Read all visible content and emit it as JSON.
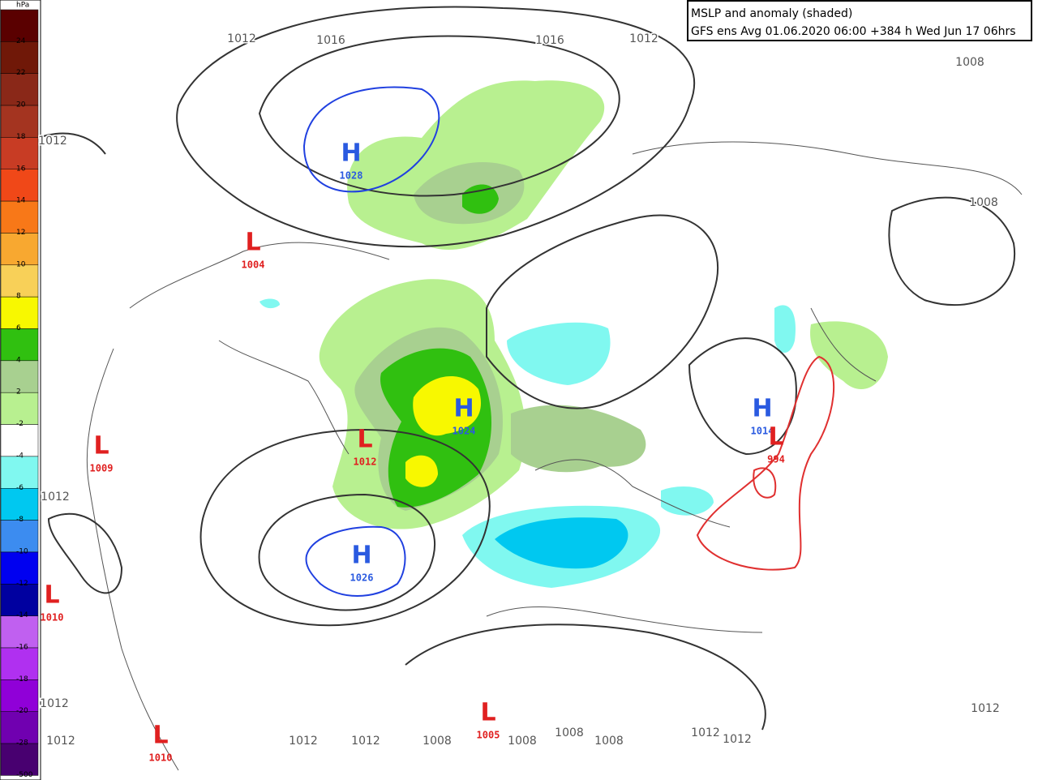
{
  "header": {
    "lines": [
      "MSLP and anomaly (shaded)",
      "GFS ens Avg 01.06.2020 06:00 +384 h Wed Jun 17 06hrs"
    ]
  },
  "colorbar": {
    "unit": "hPa",
    "labels": [
      "24",
      "22",
      "20",
      "18",
      "16",
      "14",
      "12",
      "10",
      "8",
      "6",
      "4",
      "2",
      "-2",
      "-4",
      "-6",
      "-8",
      "-10",
      "-12",
      "-14",
      "-16",
      "-18",
      "-20",
      "-28",
      "-500"
    ],
    "colors": [
      "#5a0000",
      "#701808",
      "#8a2818",
      "#a43420",
      "#c83c24",
      "#f04818",
      "#f87818",
      "#f8a830",
      "#f8d058",
      "#f8f800",
      "#30c010",
      "#a8d090",
      "#b8f090",
      "#ffffff",
      "#80f8f0",
      "#00c8f0",
      "#3c8cf0",
      "#0000f0",
      "#0000a0",
      "#c060f0",
      "#b030f0",
      "#9000d8",
      "#7000b0",
      "#480070"
    ]
  },
  "centers": [
    {
      "letter": "H",
      "value": "1028"
    },
    {
      "letter": "L",
      "value": "1004"
    },
    {
      "letter": "H",
      "value": "1024"
    },
    {
      "letter": "L",
      "value": "1012"
    },
    {
      "letter": "L",
      "value": "1009"
    },
    {
      "letter": "L",
      "value": "1010"
    },
    {
      "letter": "H",
      "value": "1026"
    },
    {
      "letter": "H",
      "value": "1014"
    },
    {
      "letter": "L",
      "value": "994"
    },
    {
      "letter": "L",
      "value": "1005"
    },
    {
      "letter": "L",
      "value": "1010"
    }
  ],
  "isobar_labels": [
    "1012",
    "1016",
    "1016",
    "1012",
    "1012",
    "1008",
    "1008",
    "1012",
    "1012",
    "1012",
    "1012",
    "1012",
    "1008",
    "1008",
    "1008",
    "1008",
    "1012",
    "1012",
    "1012"
  ]
}
